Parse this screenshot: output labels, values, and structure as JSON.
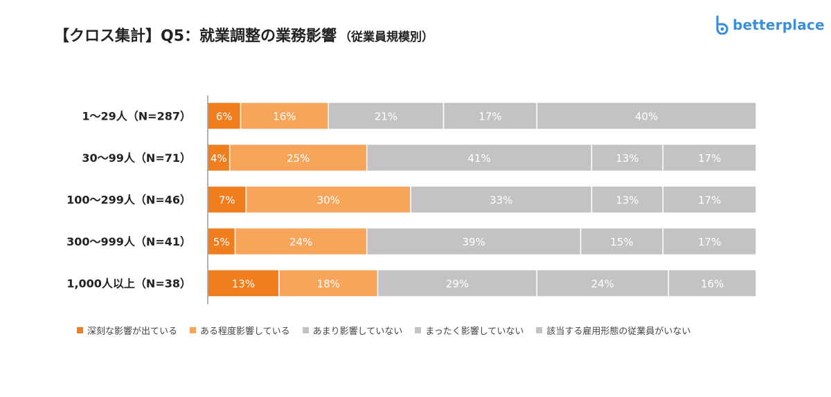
{
  "title": "【クロス集計】Q5：就業調整の業務影響",
  "subtitle": "（従業員規模別）",
  "logo": {
    "text": "betterplace",
    "icon": "b-logo-icon"
  },
  "colors": [
    "#f07e1e",
    "#f8a55c",
    "#c4c2c5",
    "#c4c2c5",
    "#c4c2c5"
  ],
  "chart_data": {
    "type": "bar",
    "orientation": "horizontal",
    "stacked": true,
    "percent": true,
    "xlim": [
      0,
      100
    ],
    "categories": [
      "1〜29人（N=287）",
      "30〜99人（N=71）",
      "100〜299人（N=46）",
      "300〜999人（N=41）",
      "1,000人以上（N=38）"
    ],
    "series": [
      {
        "name": "深刻な影響が出ている",
        "values": [
          6,
          4,
          7,
          5,
          13
        ]
      },
      {
        "name": "ある程度影響している",
        "values": [
          16,
          25,
          30,
          24,
          18
        ]
      },
      {
        "name": "あまり影響していない",
        "values": [
          21,
          41,
          33,
          39,
          29
        ]
      },
      {
        "name": "まったく影響していない",
        "values": [
          17,
          13,
          13,
          15,
          24
        ]
      },
      {
        "name": "該当する雇用形態の従業員がいない",
        "values": [
          40,
          17,
          17,
          17,
          16
        ]
      }
    ],
    "legend_position": "bottom",
    "grid": false
  }
}
